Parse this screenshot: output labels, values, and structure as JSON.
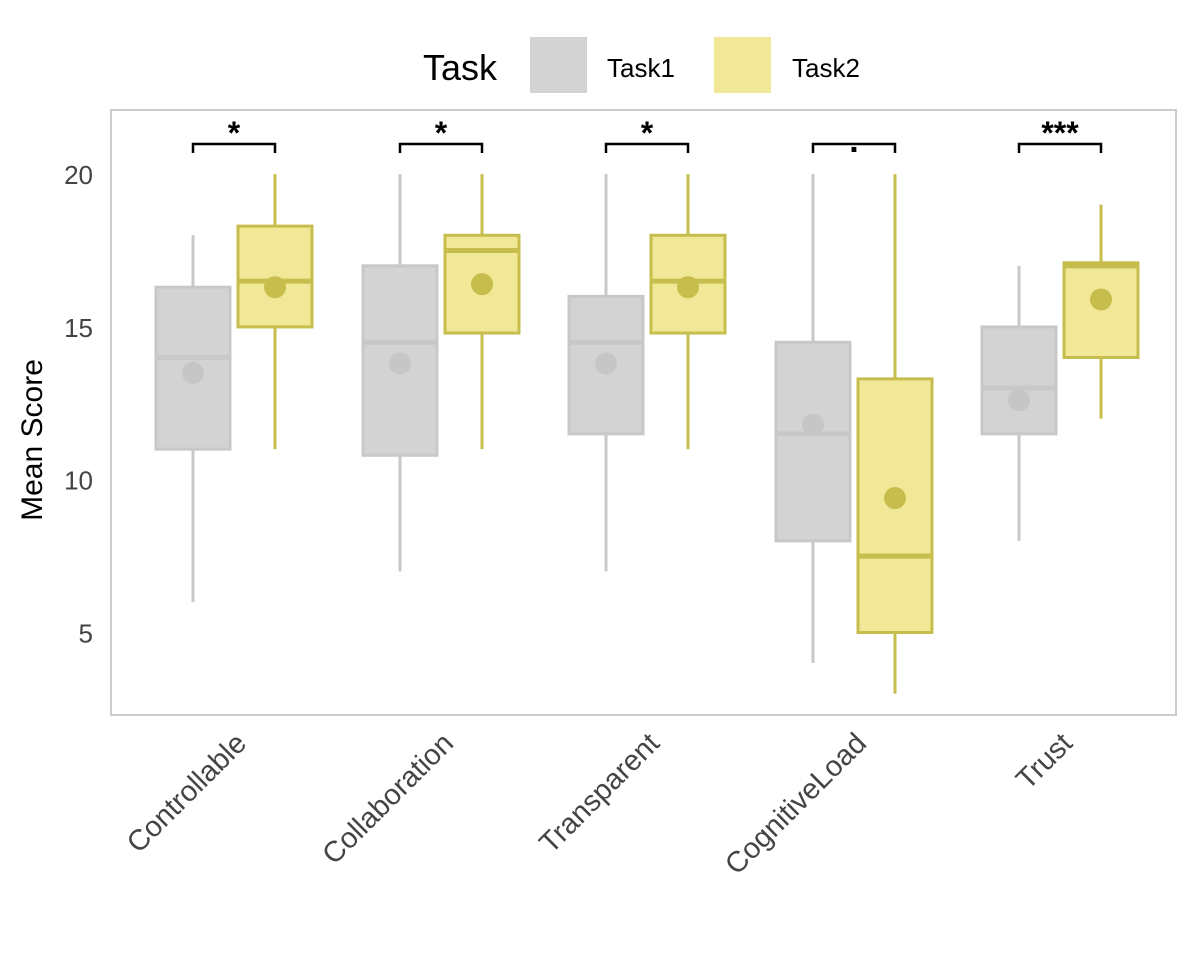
{
  "chart_data": {
    "type": "box",
    "ylabel": "Mean Score",
    "yticks": [
      5,
      10,
      15,
      20
    ],
    "ylim": [
      2.3,
      22.1
    ],
    "legend": {
      "title": "Task",
      "position": "top",
      "entries": [
        "Task1",
        "Task2"
      ]
    },
    "colors": {
      "Task1": {
        "fill": "#d3d3d3",
        "stroke": "#c8c8c8",
        "mean": "#c6c6c6"
      },
      "Task2": {
        "fill": "#f0e896",
        "stroke": "#c7bd4c",
        "mean": "#c7bd4c"
      }
    },
    "categories": [
      "Controllable",
      "Collaboration",
      "Transparent",
      "CognitiveLoad",
      "Trust"
    ],
    "series": [
      {
        "name": "Task1",
        "boxes": [
          {
            "min": 6,
            "q1": 11,
            "median": 14,
            "q3": 16.3,
            "max": 18,
            "mean": 13.5
          },
          {
            "min": 7,
            "q1": 10.8,
            "median": 14.5,
            "q3": 17,
            "max": 20,
            "mean": 13.8
          },
          {
            "min": 7,
            "q1": 11.5,
            "median": 14.5,
            "q3": 16,
            "max": 20,
            "mean": 13.8
          },
          {
            "min": 4,
            "q1": 8,
            "median": 11.5,
            "q3": 14.5,
            "max": 20,
            "mean": 11.8
          },
          {
            "min": 8,
            "q1": 11.5,
            "median": 13,
            "q3": 15,
            "max": 17,
            "mean": 12.6
          }
        ]
      },
      {
        "name": "Task2",
        "boxes": [
          {
            "min": 11,
            "q1": 15,
            "median": 16.5,
            "q3": 18.3,
            "max": 20,
            "mean": 16.3
          },
          {
            "min": 11,
            "q1": 14.8,
            "median": 17.5,
            "q3": 18,
            "max": 20,
            "mean": 16.4
          },
          {
            "min": 11,
            "q1": 14.8,
            "median": 16.5,
            "q3": 18,
            "max": 20,
            "mean": 16.3
          },
          {
            "min": 3,
            "q1": 5,
            "median": 7.5,
            "q3": 13.3,
            "max": 20,
            "mean": 9.4
          },
          {
            "min": 12,
            "q1": 14,
            "median": 17,
            "q3": 17.1,
            "max": 19,
            "mean": 15.9
          }
        ]
      }
    ],
    "significance": [
      "*",
      "*",
      "*",
      ".",
      "***"
    ]
  }
}
